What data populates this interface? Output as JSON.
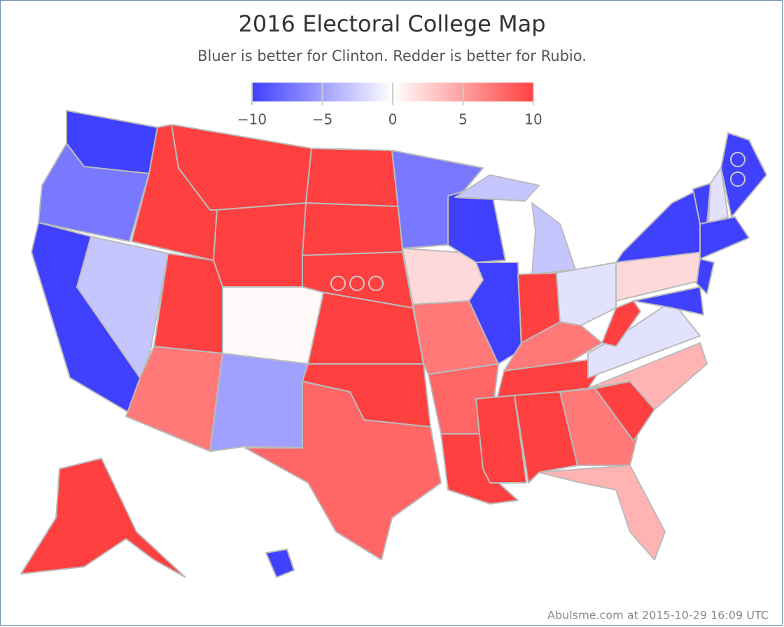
{
  "chart_data": {
    "type": "map",
    "title": "2016 Electoral College Map",
    "subtitle": "Bluer is better for Clinton. Redder is better for Rubio.",
    "colors": [
      "#4040ff",
      "#ffffff",
      "#ff4040"
    ],
    "clim": [
      -10,
      10
    ],
    "cticks": [
      {
        "value": -10,
        "label": "−10"
      },
      {
        "value": -5,
        "label": "−5"
      },
      0,
      5,
      10
    ],
    "values": [
      -10,
      -7,
      -10,
      -3,
      10,
      10,
      10,
      10,
      7,
      0.3,
      -5,
      10,
      10,
      10,
      10,
      10,
      8,
      -7,
      2,
      7,
      8,
      10,
      -10,
      -10,
      -3,
      -3,
      10,
      -1.5,
      7,
      10,
      10,
      10,
      7,
      4,
      10,
      4,
      -1.5,
      10,
      2,
      -10,
      -10,
      -10,
      -10,
      -1.5,
      -10,
      -10,
      10,
      -10
    ],
    "credit": "Abulsme.com at 2015-10-29 16:09 UTC"
  }
}
